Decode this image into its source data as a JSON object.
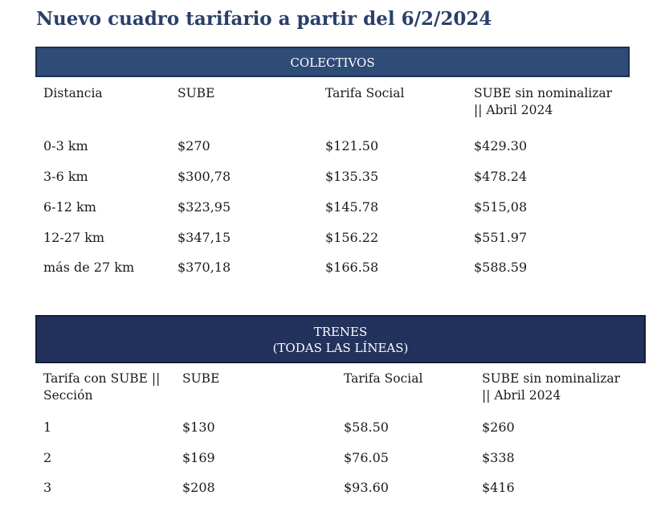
{
  "page": {
    "title": "Nuevo cuadro tarifario a partir del 6/2/2024"
  },
  "colectivos": {
    "heading": "COLECTIVOS",
    "columns": [
      "Distancia",
      "SUBE",
      "Tarifa Social",
      "SUBE sin nominalizar",
      "|| Abril 2024"
    ],
    "rows": [
      [
        "0-3 km",
        "$270",
        "$121.50",
        "$429.30"
      ],
      [
        "3-6 km",
        "$300,78",
        "$135.35",
        "$478.24"
      ],
      [
        "6-12 km",
        "$323,95",
        "$145.78",
        "$515,08"
      ],
      [
        "12-27 km",
        "$347,15",
        "$156.22",
        "$551.97"
      ],
      [
        "más de 27 km",
        "$370,18",
        "$166.58",
        "$588.59"
      ]
    ]
  },
  "trenes": {
    "heading_line1": "TRENES",
    "heading_line2": "(TODAS LAS LÍNEAS)",
    "columns": [
      "Tarifa con SUBE ||",
      "Sección",
      "SUBE",
      "Tarifa Social",
      "SUBE sin nominalizar",
      "|| Abril 2024"
    ],
    "rows": [
      [
        "1",
        "$130",
        "$58.50",
        "$260"
      ],
      [
        "2",
        "$169",
        "$76.05",
        "$338"
      ],
      [
        "3",
        "$208",
        "$93.60",
        "$416"
      ]
    ]
  },
  "colors": {
    "title": "#2b4068",
    "colectivos_band": "#2f4b77",
    "trenes_band": "#22325d"
  }
}
